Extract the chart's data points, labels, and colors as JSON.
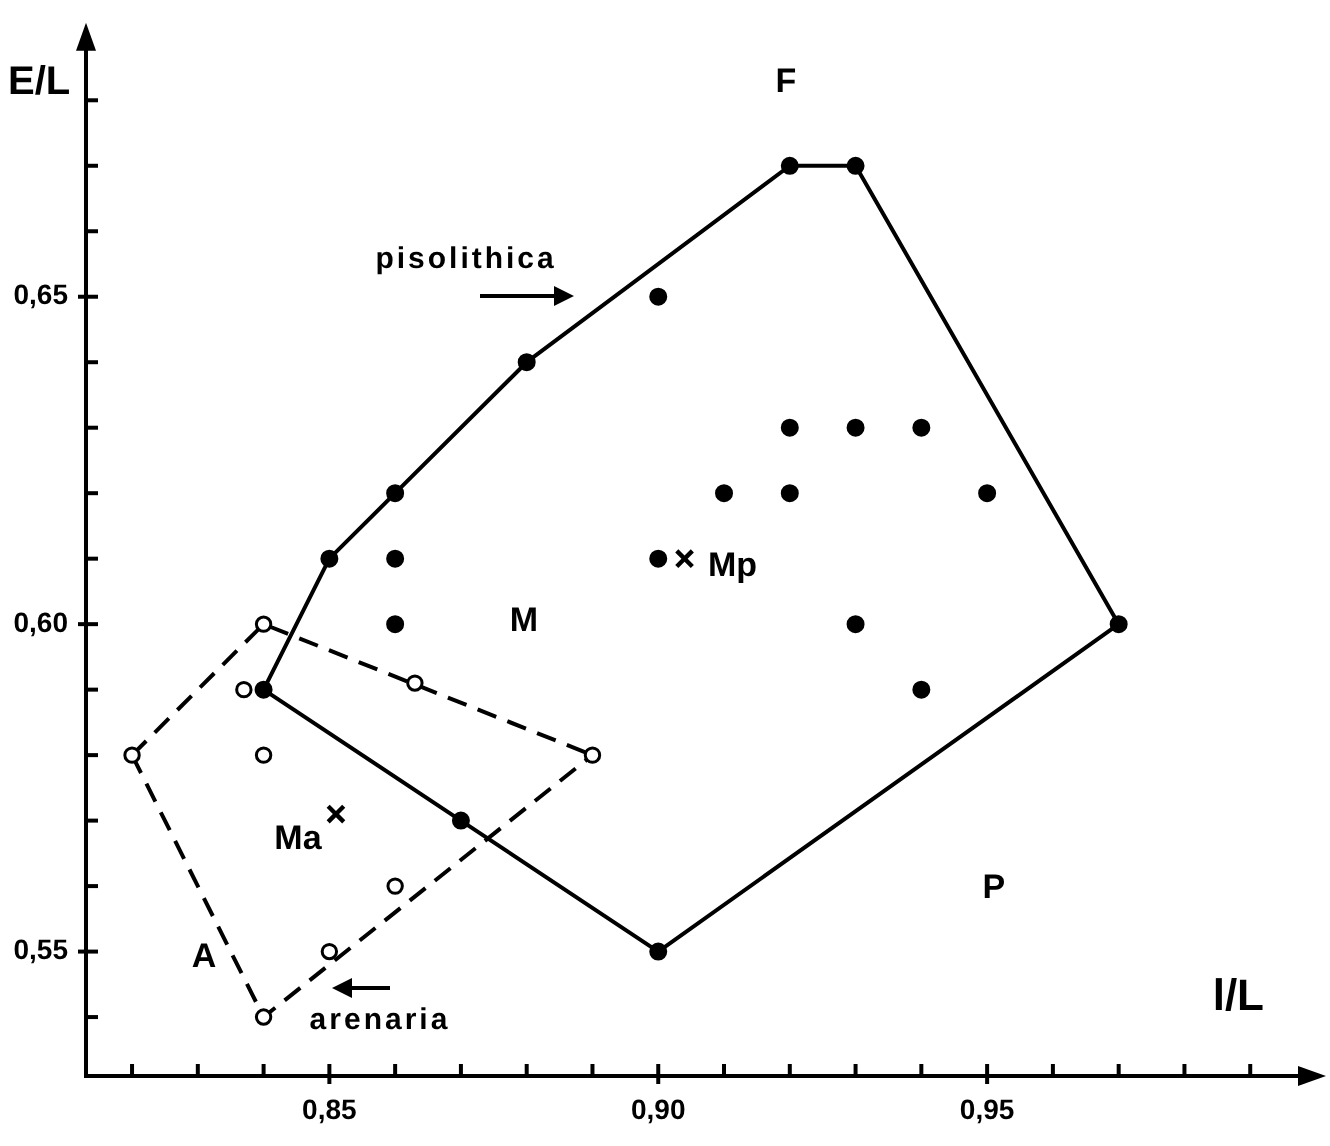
{
  "chart_data": {
    "type": "scatter",
    "xlabel": "l/L",
    "ylabel": "E/L",
    "annotations": [
      "F",
      "M",
      "P",
      "A",
      {
        "text": "Ma",
        "x": 0.851,
        "y": 0.571
      },
      {
        "text": "Mp",
        "x": 0.904,
        "y": 0.61
      },
      "pisolithica",
      "arenaria"
    ],
    "series": [
      {
        "color": "#000000",
        "marker": "circle",
        "x": [
          0.84,
          0.85,
          0.86,
          0.86,
          0.86,
          0.87,
          0.88,
          0.9,
          0.9,
          0.9,
          0.91,
          0.92,
          0.93,
          0.92,
          0.93,
          0.94,
          0.92,
          0.95,
          0.93,
          0.94,
          0.97
        ],
        "values": [
          0.59,
          0.61,
          0.62,
          0.61,
          0.6,
          0.57,
          0.64,
          0.65,
          0.61,
          0.55,
          0.62,
          0.67,
          0.67,
          0.63,
          0.63,
          0.63,
          0.62,
          0.62,
          0.6,
          0.59,
          0.6
        ]
      },
      {
        "color": "#ffffff",
        "marker": "circle",
        "x": [
          0.84,
          0.837,
          0.82,
          0.84,
          0.863,
          0.89,
          0.86,
          0.85,
          0.84
        ],
        "values": [
          0.6,
          0.59,
          0.58,
          0.58,
          0.591,
          0.58,
          0.56,
          0.55,
          0.54
        ]
      },
      {
        "color": "#000000",
        "marker": "cross",
        "x": [
          0.851,
          0.904
        ],
        "values": [
          0.571,
          0.61
        ]
      },
      {
        "type": "line",
        "color": "#000000",
        "marker": "none",
        "line_style": "solid",
        "x": [
          0.84,
          0.85,
          0.86,
          0.88,
          0.92,
          0.93,
          0.97
        ],
        "values": [
          0.59,
          0.61,
          0.62,
          0.64,
          0.67,
          0.67,
          0.6
        ]
      },
      {
        "type": "line",
        "color": "#000000",
        "marker": "none",
        "line_style": "solid",
        "x": [
          0.84,
          0.87,
          0.9,
          0.97
        ],
        "values": [
          0.59,
          0.57,
          0.55,
          0.6
        ]
      },
      {
        "type": "line",
        "color": "#000000",
        "marker": "none",
        "line_style": "dashed",
        "x": [
          0.82,
          0.84,
          0.89
        ],
        "values": [
          0.58,
          0.6,
          0.58
        ]
      },
      {
        "type": "line",
        "color": "#000000",
        "marker": "none",
        "line_style": "dashed",
        "x": [
          0.82,
          0.84,
          0.89
        ],
        "values": [
          0.58,
          0.54,
          0.58
        ]
      }
    ],
    "xlim": [
      0.813,
      1.0
    ],
    "ylim": [
      0.531,
      0.69
    ],
    "xticks": [
      {
        "value": 0.82,
        "label": null
      },
      {
        "value": 0.83,
        "label": null
      },
      {
        "value": 0.84,
        "label": null
      },
      {
        "value": 0.85,
        "label": "0,85"
      },
      {
        "value": 0.86,
        "label": null
      },
      {
        "value": 0.87,
        "label": null
      },
      {
        "value": 0.88,
        "label": null
      },
      {
        "value": 0.89,
        "label": null
      },
      {
        "value": 0.9,
        "label": "0,90"
      },
      {
        "value": 0.91,
        "label": null
      },
      {
        "value": 0.92,
        "label": null
      },
      {
        "value": 0.93,
        "label": null
      },
      {
        "value": 0.94,
        "label": null
      },
      {
        "value": 0.95,
        "label": "0,95"
      },
      {
        "value": 0.96,
        "label": null
      },
      {
        "value": 0.97,
        "label": null
      },
      {
        "value": 0.98,
        "label": null
      },
      {
        "value": 0.99,
        "label": null
      }
    ],
    "yticks": [
      {
        "value": 0.54,
        "label": null
      },
      {
        "value": 0.55,
        "label": "0,55"
      },
      {
        "value": 0.56,
        "label": null
      },
      {
        "value": 0.57,
        "label": null
      },
      {
        "value": 0.58,
        "label": null
      },
      {
        "value": 0.59,
        "label": null
      },
      {
        "value": 0.6,
        "label": "0,60"
      },
      {
        "value": 0.61,
        "label": null
      },
      {
        "value": 0.62,
        "label": null
      },
      {
        "value": 0.63,
        "label": null
      },
      {
        "value": 0.64,
        "label": null
      },
      {
        "value": 0.65,
        "label": "0,65"
      },
      {
        "value": 0.66,
        "label": null
      },
      {
        "value": 0.67,
        "label": null
      },
      {
        "value": 0.68,
        "label": null
      }
    ]
  }
}
